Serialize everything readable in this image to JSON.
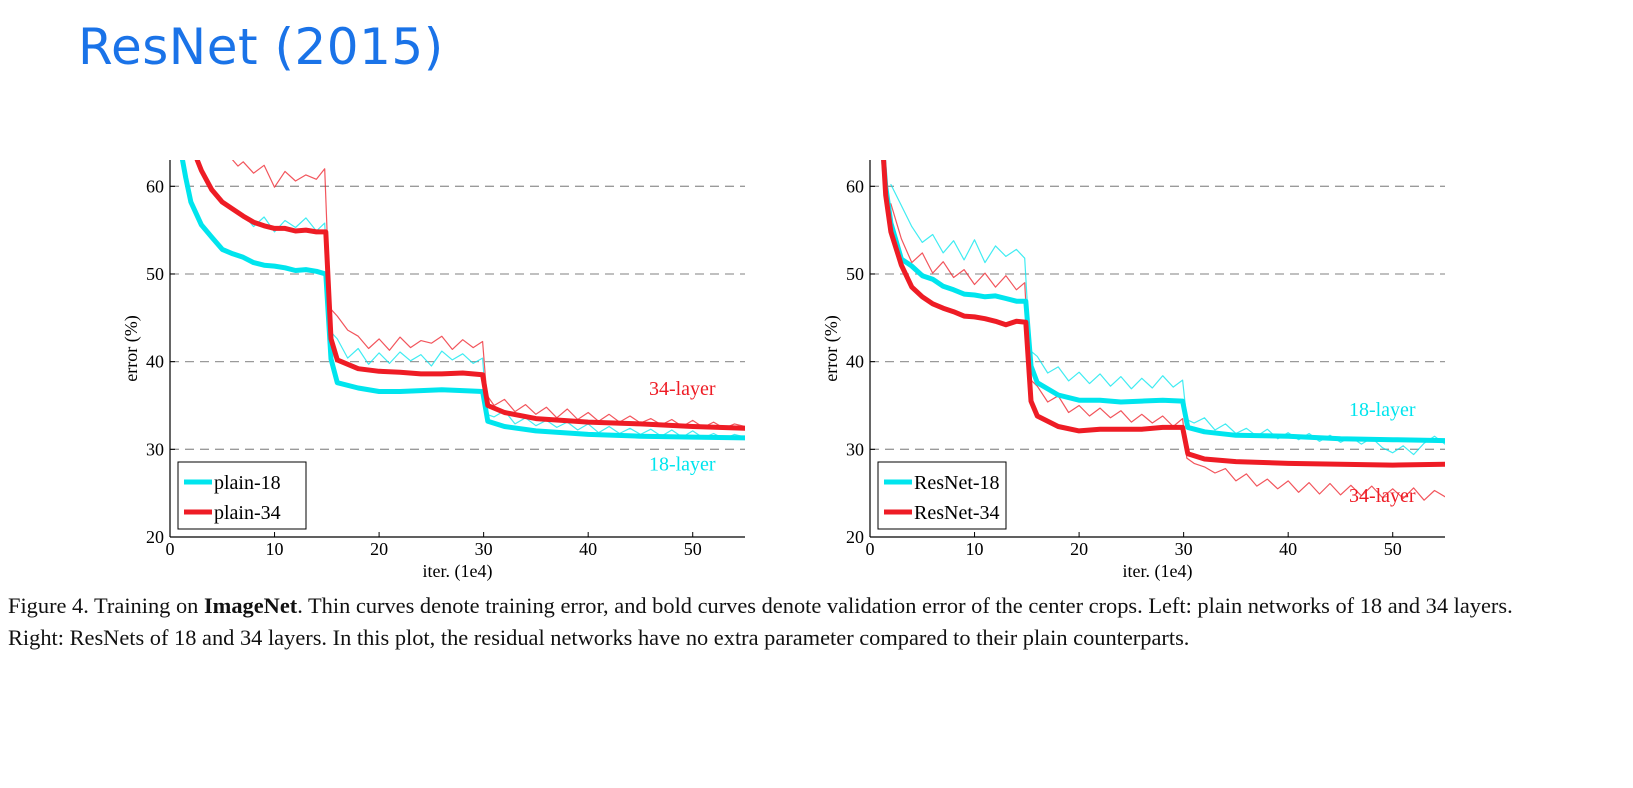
{
  "title": "ResNet (2015)",
  "caption": {
    "part1": "Figure 4. Training on ",
    "bold": "ImageNet",
    "part2": ". Thin curves denote training error, and bold curves denote validation error of the center crops. Left: plain networks of 18 and 34 layers. Right: ResNets of 18 and 34 layers. In this plot, the residual networks have no extra parameter compared to their plain counterparts."
  },
  "chart_data": [
    {
      "type": "line",
      "panel": "left",
      "xlabel": "iter. (1e4)",
      "ylabel": "error (%)",
      "xlim": [
        0,
        55
      ],
      "ylim": [
        20,
        63
      ],
      "xticks": [
        0,
        10,
        20,
        30,
        40,
        50
      ],
      "yticks": [
        20,
        30,
        40,
        50,
        60
      ],
      "grid": "horizontal dashed at 30, 40, 50, 60",
      "legend_position": "bottom-left",
      "legend": [
        "plain-18",
        "plain-34"
      ],
      "annotations": [
        {
          "text": "34-layer",
          "x": 49,
          "y": 36.2,
          "color": "#ee1c25"
        },
        {
          "text": "18-layer",
          "x": 49,
          "y": 27.6,
          "color": "#00e5ee"
        }
      ],
      "series": [
        {
          "name": "plain-18",
          "kind": "validation",
          "color": "#00e5ee",
          "x": [
            1.2,
            1.5,
            2,
            3,
            4,
            5,
            6,
            7,
            8,
            9,
            10,
            11,
            12,
            13,
            14,
            14.9,
            15.4,
            16,
            18,
            20,
            22,
            24,
            26,
            28,
            29.9,
            30.4,
            32,
            35,
            40,
            45,
            50,
            55
          ],
          "y": [
            63,
            61,
            58.2,
            55.6,
            54.2,
            52.8,
            52.3,
            51.9,
            51.3,
            51.0,
            50.9,
            50.7,
            50.4,
            50.5,
            50.3,
            50.0,
            40.3,
            37.6,
            37.0,
            36.6,
            36.6,
            36.7,
            36.8,
            36.7,
            36.6,
            33.2,
            32.6,
            32.1,
            31.7,
            31.5,
            31.4,
            31.3
          ]
        },
        {
          "name": "plain-34",
          "kind": "validation",
          "color": "#ee1c25",
          "x": [
            2.6,
            3,
            4,
            5,
            6,
            7,
            8,
            9,
            10,
            11,
            12,
            13,
            14,
            14.9,
            15.4,
            16,
            18,
            20,
            22,
            24,
            26,
            28,
            29.9,
            30.4,
            32,
            35,
            40,
            45,
            50,
            55
          ],
          "y": [
            63,
            61.8,
            59.6,
            58.2,
            57.4,
            56.6,
            55.9,
            55.5,
            55.2,
            55.2,
            54.9,
            55.0,
            54.8,
            54.8,
            42.6,
            40.2,
            39.2,
            38.9,
            38.8,
            38.6,
            38.6,
            38.7,
            38.5,
            35.0,
            34.2,
            33.5,
            33.1,
            32.9,
            32.6,
            32.4
          ]
        },
        {
          "name": "plain-18",
          "kind": "training",
          "color": "#00e5ee",
          "x": [
            7,
            8,
            9,
            10,
            11,
            12,
            13,
            14,
            14.8,
            15.3,
            16,
            17,
            18,
            19,
            20,
            21,
            22,
            23,
            24,
            25,
            26,
            27,
            28,
            29,
            29.9,
            30.3,
            31,
            32,
            33,
            34,
            35,
            36,
            37,
            38,
            39,
            40,
            41,
            42,
            43,
            44,
            45,
            46,
            47,
            48,
            49,
            50,
            51,
            52,
            53,
            54,
            55
          ],
          "y": [
            56.8,
            55.4,
            56.5,
            54.8,
            56.1,
            55.3,
            56.4,
            54.9,
            55.8,
            43.5,
            42.6,
            40.4,
            41.5,
            39.7,
            41.0,
            39.8,
            41.1,
            40.1,
            40.8,
            39.5,
            41.2,
            40.2,
            40.9,
            39.8,
            40.4,
            34.0,
            33.7,
            34.4,
            32.9,
            33.6,
            32.7,
            33.3,
            32.5,
            33.1,
            32.2,
            32.9,
            31.9,
            32.6,
            31.8,
            32.4,
            31.7,
            32.3,
            31.5,
            32.2,
            31.4,
            32.1,
            31.3,
            31.8,
            31.2,
            31.7,
            31.4
          ]
        },
        {
          "name": "plain-34",
          "kind": "training",
          "color": "#ee1c25",
          "x": [
            6,
            6.5,
            7,
            8,
            9,
            10,
            11,
            12,
            13,
            14,
            14.8,
            15.3,
            16,
            17,
            18,
            19,
            20,
            21,
            22,
            23,
            24,
            25,
            26,
            27,
            28,
            29,
            29.9,
            30.3,
            31,
            32,
            33,
            34,
            35,
            36,
            37,
            38,
            39,
            40,
            41,
            42,
            43,
            44,
            45,
            46,
            47,
            48,
            49,
            50,
            51,
            52,
            53,
            54,
            55
          ],
          "y": [
            63,
            62.3,
            62.8,
            61.5,
            62.4,
            59.9,
            61.7,
            60.6,
            61.3,
            60.8,
            62.0,
            46.1,
            45.2,
            43.6,
            42.9,
            41.5,
            42.6,
            41.3,
            42.8,
            41.6,
            42.4,
            42.1,
            42.9,
            41.4,
            42.5,
            41.6,
            42.3,
            36.2,
            35.0,
            35.7,
            34.3,
            35.1,
            34.0,
            34.8,
            33.6,
            34.6,
            33.4,
            34.2,
            33.2,
            34.0,
            33.1,
            33.8,
            33.0,
            33.5,
            32.8,
            33.4,
            32.6,
            33.3,
            32.5,
            33.1,
            32.4,
            32.9,
            32.6
          ]
        }
      ]
    },
    {
      "type": "line",
      "panel": "right",
      "xlabel": "iter. (1e4)",
      "ylabel": "error (%)",
      "xlim": [
        0,
        55
      ],
      "ylim": [
        20,
        63
      ],
      "xticks": [
        0,
        10,
        20,
        30,
        40,
        50
      ],
      "yticks": [
        20,
        30,
        40,
        50,
        60
      ],
      "grid": "horizontal dashed at 30, 40, 50, 60",
      "legend_position": "bottom-left",
      "legend": [
        "ResNet-18",
        "ResNet-34"
      ],
      "annotations": [
        {
          "text": "18-layer",
          "x": 49,
          "y": 33.8,
          "color": "#00e5ee"
        },
        {
          "text": "34-layer",
          "x": 49,
          "y": 24.0,
          "color": "#ee1c25"
        }
      ],
      "series": [
        {
          "name": "ResNet-18",
          "kind": "validation",
          "color": "#00e5ee",
          "x": [
            1.3,
            1.5,
            2,
            3,
            4,
            5,
            6,
            7,
            8,
            9,
            10,
            11,
            12,
            13,
            14,
            14.9,
            15.4,
            16,
            18,
            20,
            22,
            24,
            26,
            28,
            29.9,
            30.4,
            32,
            35,
            40,
            45,
            50,
            55
          ],
          "y": [
            63,
            60,
            55.8,
            51.7,
            50.9,
            49.8,
            49.4,
            48.6,
            48.2,
            47.7,
            47.6,
            47.4,
            47.5,
            47.2,
            46.9,
            46.9,
            39.5,
            37.6,
            36.2,
            35.6,
            35.6,
            35.4,
            35.5,
            35.6,
            35.5,
            32.5,
            32.0,
            31.6,
            31.5,
            31.2,
            31.1,
            31.0
          ]
        },
        {
          "name": "ResNet-34",
          "kind": "validation",
          "color": "#ee1c25",
          "x": [
            1.3,
            1.5,
            2,
            3,
            4,
            5,
            6,
            7,
            8,
            9,
            10,
            11,
            12,
            13,
            14,
            14.9,
            15.4,
            16,
            18,
            20,
            22,
            24,
            26,
            28,
            29.9,
            30.4,
            32,
            35,
            40,
            45,
            50,
            55
          ],
          "y": [
            63,
            59,
            54.8,
            51.0,
            48.5,
            47.4,
            46.6,
            46.1,
            45.7,
            45.2,
            45.1,
            44.9,
            44.6,
            44.2,
            44.6,
            44.5,
            35.5,
            33.8,
            32.6,
            32.1,
            32.3,
            32.3,
            32.3,
            32.5,
            32.5,
            29.5,
            28.9,
            28.6,
            28.4,
            28.3,
            28.2,
            28.3
          ]
        },
        {
          "name": "ResNet-18",
          "kind": "training",
          "color": "#00e5ee",
          "x": [
            2,
            3,
            4,
            5,
            6,
            7,
            8,
            9,
            10,
            11,
            12,
            13,
            14,
            14.8,
            15.3,
            16,
            17,
            18,
            19,
            20,
            21,
            22,
            23,
            24,
            25,
            26,
            27,
            28,
            29,
            29.9,
            30.3,
            31,
            32,
            33,
            34,
            35,
            36,
            37,
            38,
            39,
            40,
            41,
            42,
            43,
            44,
            45,
            46,
            47,
            48,
            49,
            50,
            51,
            52,
            53,
            54,
            55
          ],
          "y": [
            60.2,
            57.8,
            55.4,
            53.6,
            54.5,
            52.4,
            53.8,
            51.6,
            53.9,
            51.3,
            53.2,
            52.0,
            52.8,
            51.8,
            41.3,
            40.6,
            38.7,
            39.4,
            37.8,
            38.8,
            37.5,
            38.6,
            37.2,
            38.3,
            36.9,
            38.1,
            37.0,
            38.4,
            37.1,
            37.9,
            33.4,
            33.0,
            33.6,
            32.2,
            32.9,
            31.8,
            32.4,
            31.5,
            32.3,
            31.2,
            31.9,
            31.1,
            31.8,
            30.9,
            31.6,
            30.8,
            31.4,
            30.6,
            31.3,
            30.2,
            29.6,
            30.4,
            29.4,
            30.7,
            31.5,
            30.6
          ]
        },
        {
          "name": "ResNet-34",
          "kind": "training",
          "color": "#ee1c25",
          "x": [
            2,
            3,
            4,
            5,
            6,
            7,
            8,
            9,
            10,
            11,
            12,
            13,
            14,
            14.8,
            15.3,
            16,
            17,
            18,
            19,
            20,
            21,
            22,
            23,
            24,
            25,
            26,
            27,
            28,
            29,
            29.9,
            30.3,
            31,
            32,
            33,
            34,
            35,
            36,
            37,
            38,
            39,
            40,
            41,
            42,
            43,
            44,
            45,
            46,
            47,
            48,
            49,
            50,
            51,
            52,
            53,
            54,
            55
          ],
          "y": [
            58.0,
            54.0,
            51.3,
            52.4,
            50.1,
            51.4,
            49.6,
            50.5,
            48.8,
            50.1,
            48.5,
            49.8,
            48.2,
            49.0,
            38.0,
            37.2,
            35.4,
            36.1,
            34.2,
            35.0,
            33.8,
            34.7,
            33.6,
            34.4,
            33.1,
            34.0,
            33.0,
            33.8,
            32.6,
            33.5,
            29.0,
            28.4,
            28.0,
            27.3,
            27.8,
            26.4,
            27.2,
            25.8,
            26.6,
            25.5,
            26.4,
            25.1,
            26.2,
            24.9,
            26.1,
            24.8,
            25.9,
            24.7,
            25.8,
            24.5,
            25.5,
            24.4,
            25.6,
            24.2,
            25.3,
            24.6
          ]
        }
      ]
    }
  ]
}
